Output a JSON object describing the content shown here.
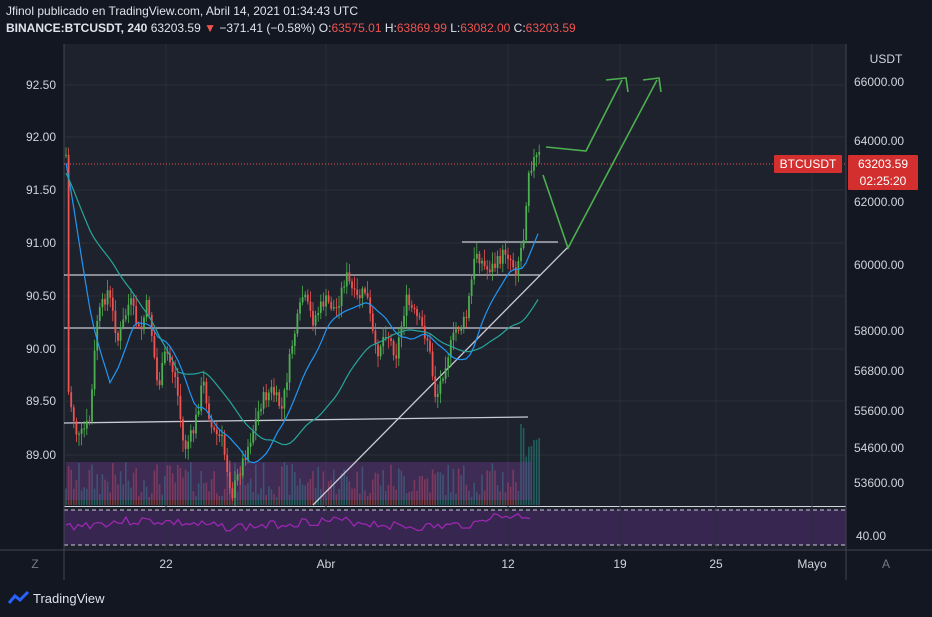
{
  "header": {
    "line1": "Jfinol publicado en TradingView.com, Abril 14, 2021 01:34:43 UTC",
    "symbol": "BINANCE:BTCUSDT, 240",
    "price": "63203.59",
    "arrow": "▼",
    "change": "−371.41 (−0.58%)",
    "o_label": "O:",
    "o_value": "63575.01",
    "h_label": "H:",
    "h_value": "63869.99",
    "l_label": "L:",
    "l_value": "63082.00",
    "c_label": "C:",
    "c_value": "63203.59"
  },
  "chart_data": {
    "type": "candlestick",
    "left_axis": {
      "ticks": [
        "92.50",
        "92.00",
        "91.50",
        "91.00",
        "90.50",
        "90.00",
        "89.50",
        "89.00"
      ],
      "range": [
        88.5,
        92.8
      ]
    },
    "right_axis": {
      "unit": "USDT",
      "ticks": [
        "66000.00",
        "64000.00",
        "62000.00",
        "60000.00",
        "58000.00",
        "56800.00",
        "55600.00",
        "54600.00",
        "53600.00"
      ],
      "scale": "log"
    },
    "rsi_axis": {
      "ticks": [
        "40.00"
      ]
    },
    "x_ticks": [
      "22",
      "Abr",
      "12",
      "19",
      "25",
      "Mayo"
    ],
    "corner_labels": {
      "left": "Z",
      "right": "A"
    },
    "last_price_label": {
      "symbol": "BTCUSDT",
      "price": "63203.59",
      "countdown": "02:25:20"
    },
    "colors": {
      "up": "#4caf50",
      "down": "#ef5350",
      "background": "#131722",
      "ma_fast": "#2196f3",
      "ma_slow": "#26a69a",
      "rsi": "#9c27b0",
      "projection": "#4caf50"
    }
  },
  "footer": {
    "brand": "TradingView"
  }
}
